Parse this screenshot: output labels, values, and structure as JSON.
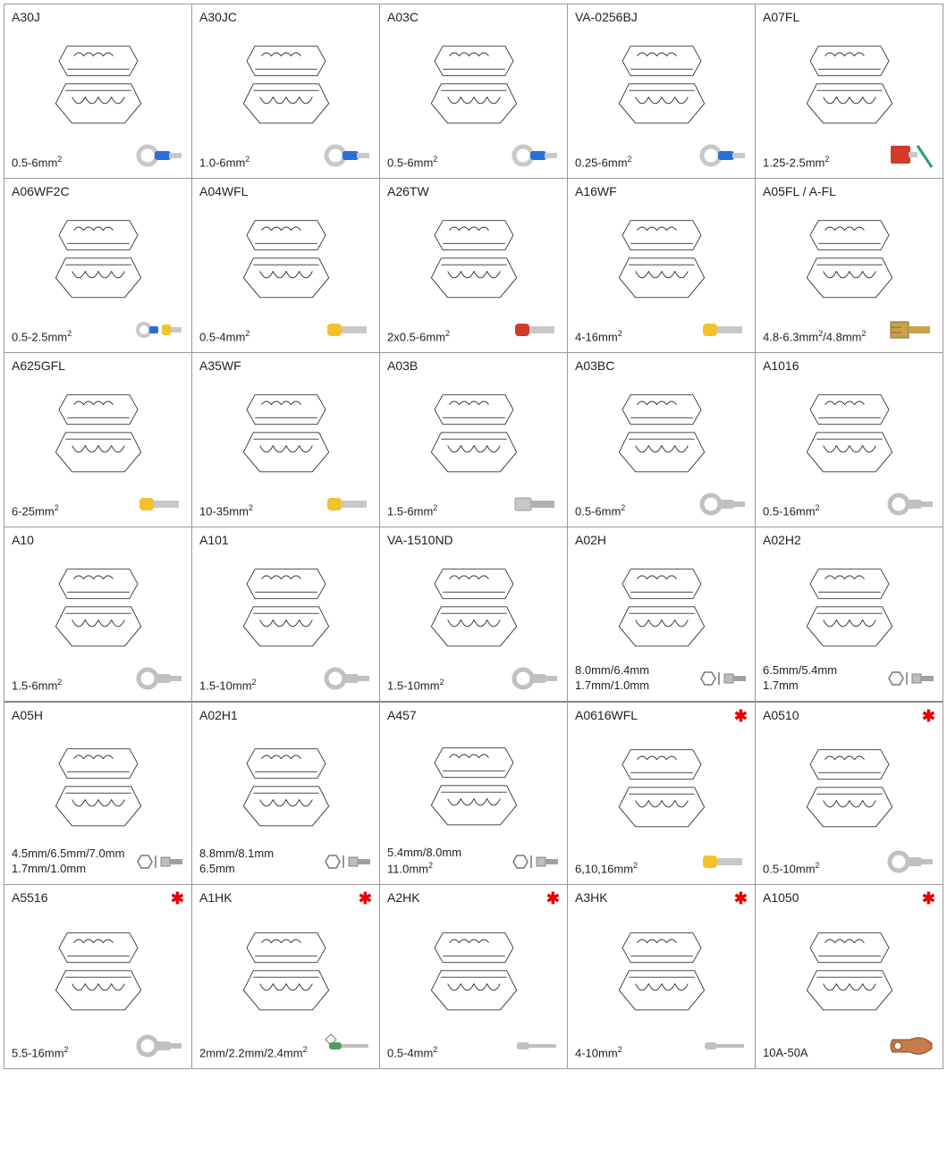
{
  "grid": {
    "columns": 5,
    "rows": 6,
    "border_color": "#999999",
    "background_color": "#ffffff",
    "text_color": "#222222",
    "code_fontsize": 14,
    "spec_fontsize": 13,
    "star_color": "#e60000"
  },
  "cells": [
    {
      "code": "A30J",
      "spec": "0.5-6mm²",
      "star": false,
      "connector": "ring-blue"
    },
    {
      "code": "A30JC",
      "spec": "1.0-6mm²",
      "star": false,
      "connector": "ring-blue"
    },
    {
      "code": "A03C",
      "spec": "0.5-6mm²",
      "star": false,
      "connector": "ring-blue"
    },
    {
      "code": "VA-0256BJ",
      "spec": "0.25-6mm²",
      "star": false,
      "connector": "ring-blue"
    },
    {
      "code": "A07FL",
      "spec": "1.25-2.5mm²",
      "star": false,
      "connector": "flag-red"
    },
    {
      "code": "A06WF2C",
      "spec": "0.5-2.5mm²",
      "star": false,
      "connector": "ring-ferrule-blue-yellow"
    },
    {
      "code": "A04WFL",
      "spec": "0.5-4mm²",
      "star": false,
      "connector": "ferrule-yellow"
    },
    {
      "code": "A26TW",
      "spec": "2x0.5-6mm²",
      "star": false,
      "connector": "twin-ferrule-red"
    },
    {
      "code": "A16WF",
      "spec": "4-16mm²",
      "star": false,
      "connector": "ferrule-yellow"
    },
    {
      "code": "A05FL / A-FL",
      "spec": "4.8-6.3mm²/4.8mm²",
      "star": false,
      "connector": "spade-brass"
    },
    {
      "code": "A625GFL",
      "spec": "6-25mm²",
      "star": false,
      "connector": "ferrule-yellow"
    },
    {
      "code": "A35WF",
      "spec": "10-35mm²",
      "star": false,
      "connector": "ferrule-yellow"
    },
    {
      "code": "A03B",
      "spec": "1.5-6mm²",
      "star": false,
      "connector": "receptacle-bare"
    },
    {
      "code": "A03BC",
      "spec": "0.5-6mm²",
      "star": false,
      "connector": "ring-bare"
    },
    {
      "code": "A1016",
      "spec": "0.5-16mm²",
      "star": false,
      "connector": "ring-bare"
    },
    {
      "code": "A10",
      "spec": "1.5-6mm²",
      "star": false,
      "connector": "ring-bare"
    },
    {
      "code": "A101",
      "spec": "1.5-10mm²",
      "star": false,
      "connector": "ring-bare"
    },
    {
      "code": "VA-1510ND",
      "spec": "1.5-10mm²",
      "star": false,
      "connector": "ring-bare"
    },
    {
      "code": "A02H",
      "spec": "8.0mm/6.4mm\n1.7mm/1.0mm",
      "star": false,
      "connector": "coax-hex"
    },
    {
      "code": "A02H2",
      "spec": "6.5mm/5.4mm\n1.7mm",
      "star": false,
      "connector": "coax-hex"
    },
    {
      "code": "A05H",
      "spec": "4.5mm/6.5mm/7.0mm\n1.7mm/1.0mm",
      "star": false,
      "connector": "coax-hex",
      "heavy_top": true
    },
    {
      "code": "A02H1",
      "spec": "8.8mm/8.1mm\n6.5mm",
      "star": false,
      "connector": "coax-hex",
      "heavy_top": true
    },
    {
      "code": "A457",
      "spec": "5.4mm/8.0mm\n11.0mm²",
      "star": false,
      "connector": "coax-hex",
      "heavy_top": true
    },
    {
      "code": "A0616WFL",
      "spec": "6,10,16mm²",
      "star": true,
      "connector": "ferrule-yellow",
      "heavy_top": true
    },
    {
      "code": "A0510",
      "spec": "0.5-10mm²",
      "star": true,
      "connector": "ring-bare",
      "heavy_top": true
    },
    {
      "code": "A5516",
      "spec": "5.5-16mm²",
      "star": true,
      "connector": "ring-bare"
    },
    {
      "code": "A1HK",
      "spec": "2mm/2.2mm/2.4mm²",
      "star": true,
      "connector": "pin-green"
    },
    {
      "code": "A2HK",
      "spec": "0.5-4mm²",
      "star": true,
      "connector": "pin-bare"
    },
    {
      "code": "A3HK",
      "spec": "4-10mm²",
      "star": true,
      "connector": "pin-bare"
    },
    {
      "code": "A1050",
      "spec": "10A-50A",
      "star": true,
      "connector": "lug-copper"
    }
  ],
  "connectors": {
    "ring-blue": {
      "kind": "ring",
      "body_color": "#2a6fd6",
      "metal_color": "#c8c8c8"
    },
    "flag-red": {
      "kind": "flag",
      "body_color": "#d23a2a",
      "metal_color": "#c8c8c8",
      "wire_color": "#2aa06a"
    },
    "ring-ferrule-blue-yellow": {
      "kind": "ring+ferrule",
      "ring_color": "#2a6fd6",
      "ferrule_color": "#f3c22b",
      "metal_color": "#c8c8c8"
    },
    "ferrule-yellow": {
      "kind": "ferrule",
      "body_color": "#f3c22b",
      "metal_color": "#c8c8c8"
    },
    "twin-ferrule-red": {
      "kind": "ferrule",
      "body_color": "#d23a2a",
      "metal_color": "#c8c8c8"
    },
    "spade-brass": {
      "kind": "spade",
      "body_color": "#c9a24a",
      "metal_color": "#c9a24a"
    },
    "receptacle-bare": {
      "kind": "receptacle",
      "body_color": "#c8c8c8",
      "metal_color": "#b0b0b0"
    },
    "ring-bare": {
      "kind": "ring",
      "body_color": "none",
      "metal_color": "#c0c0c0"
    },
    "coax-hex": {
      "kind": "coax",
      "body_color": "#bdbdbd",
      "metal_color": "#a0a0a0"
    },
    "pin-green": {
      "kind": "pin",
      "body_color": "#4aa05a",
      "metal_color": "#c0c0c0"
    },
    "pin-bare": {
      "kind": "pin",
      "body_color": "none",
      "metal_color": "#c0c0c0"
    },
    "lug-copper": {
      "kind": "lug",
      "body_color": "#c77a4a",
      "metal_color": "#c77a4a"
    }
  },
  "die_drawing": {
    "stroke": "#333333",
    "stroke_width": 1,
    "fill": "#ffffff",
    "width": 110,
    "height": 110
  }
}
